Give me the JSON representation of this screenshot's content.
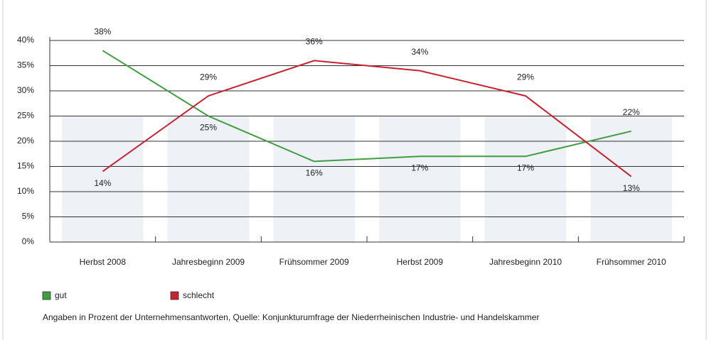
{
  "chart_data": {
    "type": "line",
    "categories": [
      "Herbst 2008",
      "Jahresbeginn 2009",
      "Frühsommer 2009",
      "Herbst 2009",
      "Jahresbeginn 2010",
      "Frühsommer 2010"
    ],
    "series": [
      {
        "name": "gut",
        "color": "#3f9e3f",
        "values": [
          38,
          25,
          16,
          17,
          17,
          22
        ],
        "value_labels": [
          "38%",
          "25%",
          "16%",
          "17%",
          "17%",
          "22%"
        ]
      },
      {
        "name": "schlecht",
        "color": "#c9212f",
        "values": [
          14,
          29,
          36,
          34,
          29,
          13
        ],
        "value_labels": [
          "14%",
          "29%",
          "36%",
          "34%",
          "29%",
          "13%"
        ]
      }
    ],
    "ylim": [
      0,
      40
    ],
    "yticks": [
      {
        "value": 0,
        "label": "0%"
      },
      {
        "value": 5,
        "label": "5%"
      },
      {
        "value": 10,
        "label": "10%"
      },
      {
        "value": 15,
        "label": "15%"
      },
      {
        "value": 20,
        "label": "20%"
      },
      {
        "value": 25,
        "label": "25%"
      },
      {
        "value": 30,
        "label": "30%"
      },
      {
        "value": 35,
        "label": "35%"
      },
      {
        "value": 40,
        "label": "40%"
      }
    ],
    "grid": true,
    "note": "Angaben in Prozent der Unternehmensantworten, Quelle: Konjunkturumfrage der Niederrheinischen Industrie- und Handelskammer"
  }
}
